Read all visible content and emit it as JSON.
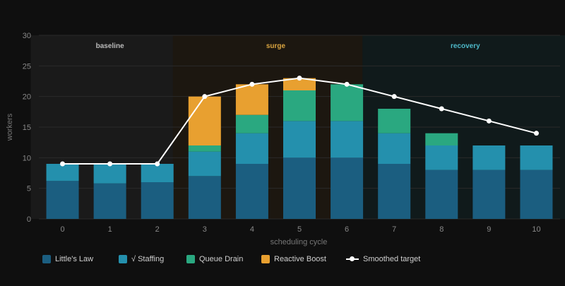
{
  "chart_data": {
    "type": "bar",
    "stacked": true,
    "title": "",
    "xlabel": "scheduling cycle",
    "ylabel": "workers",
    "ylim": [
      0,
      30
    ],
    "yticks": [
      0,
      5,
      10,
      15,
      20,
      25,
      30
    ],
    "grid": true,
    "categories": [
      "0",
      "1",
      "2",
      "3",
      "4",
      "5",
      "6",
      "7",
      "8",
      "9",
      "10"
    ],
    "series": [
      {
        "name": "Little's Law",
        "color": "#1b5e80",
        "values": [
          6.2,
          5.8,
          6,
          7,
          9,
          10,
          10,
          9,
          8,
          8,
          8
        ]
      },
      {
        "name": "√ Staffing",
        "color": "#2490ad",
        "values": [
          2.8,
          3.2,
          3,
          4,
          5,
          6,
          6,
          5,
          4,
          4,
          4
        ]
      },
      {
        "name": "Queue Drain",
        "color": "#2aa880",
        "values": [
          0,
          0,
          0,
          1,
          3,
          5,
          6,
          4,
          2,
          0,
          0
        ]
      },
      {
        "name": "Reactive Boost",
        "color": "#e8a030",
        "values": [
          0,
          0,
          0,
          8,
          5,
          2,
          0,
          0,
          0,
          0,
          0
        ]
      }
    ],
    "line": {
      "name": "Smoothed target",
      "color": "#ffffff",
      "values": [
        9,
        9,
        9,
        20,
        22,
        23,
        22,
        20,
        18,
        16,
        14
      ]
    },
    "phases": [
      {
        "label": "baseline",
        "from": 0,
        "to": 2,
        "fill": "#1a1a1a",
        "label_color": "#bbbbbb"
      },
      {
        "label": "surge",
        "from": 3,
        "to": 6,
        "fill": "#1c1710",
        "label_color": "#d9a440"
      },
      {
        "label": "recovery",
        "from": 7,
        "to": 10,
        "fill": "#101a1b",
        "label_color": "#4db8c8"
      }
    ],
    "legend_position": "bottom"
  },
  "colors": {
    "background": "#0f0f0f",
    "grid": "#2a2a2a",
    "axis_text": "#888888",
    "label_text": "#777777"
  }
}
